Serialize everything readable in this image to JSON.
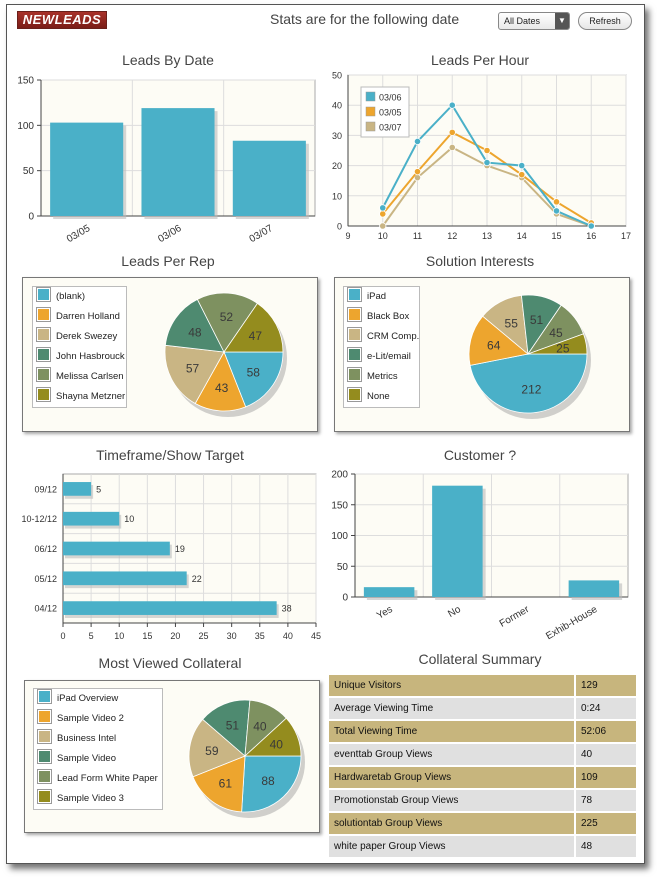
{
  "header": {
    "logo_text": "NEWLEADS",
    "date_label": "Stats are for the following date",
    "date_select_value": "All Dates",
    "refresh_label": "Refresh"
  },
  "colors": {
    "teal": "#4ab0c8",
    "orange": "#eda52e",
    "tan": "#c9b584",
    "darkgreen": "#4e8a70",
    "olive": "#7e9160",
    "mustard": "#948c1e"
  },
  "chart_data": [
    {
      "id": "leads_by_date",
      "type": "bar",
      "title": "Leads By Date",
      "categories": [
        "03/05",
        "03/06",
        "03/07"
      ],
      "values": [
        103,
        119,
        83
      ],
      "ylim": [
        0,
        150
      ],
      "yticks": [
        0,
        50,
        100,
        150
      ]
    },
    {
      "id": "leads_per_hour",
      "type": "line",
      "title": "Leads Per Hour",
      "x": [
        10,
        11,
        12,
        13,
        14,
        15,
        16
      ],
      "xlim": [
        9,
        17
      ],
      "xticks": [
        9,
        10,
        11,
        12,
        13,
        14,
        15,
        16,
        17
      ],
      "ylim": [
        0,
        50
      ],
      "yticks": [
        0,
        10,
        20,
        30,
        40,
        50
      ],
      "series": [
        {
          "name": "03/06",
          "color": "#4ab0c8",
          "values": [
            6,
            28,
            40,
            21,
            20,
            5,
            0
          ]
        },
        {
          "name": "03/05",
          "color": "#eda52e",
          "values": [
            4,
            18,
            31,
            25,
            17,
            8,
            1
          ]
        },
        {
          "name": "03/07",
          "color": "#c9b584",
          "values": [
            0,
            16,
            26,
            20,
            16,
            4,
            0
          ]
        }
      ]
    },
    {
      "id": "leads_per_rep",
      "type": "pie",
      "title": "Leads Per Rep",
      "labels": [
        "(blank)",
        "Darren Holland",
        "Derek Swezey",
        "John Hasbrouck",
        "Melissa Carlsen",
        "Shayna Metzner"
      ],
      "values": [
        58,
        43,
        57,
        48,
        52,
        47
      ],
      "colors": [
        "#4ab0c8",
        "#eda52e",
        "#c9b584",
        "#4e8a70",
        "#7e9160",
        "#948c1e"
      ]
    },
    {
      "id": "solution_interests",
      "type": "pie",
      "title": "Solution Interests",
      "labels": [
        "iPad",
        "Black Box",
        "CRM Comp.",
        "e-Lit/email",
        "Metrics",
        "None"
      ],
      "values": [
        212,
        64,
        55,
        51,
        45,
        25
      ],
      "colors": [
        "#4ab0c8",
        "#eda52e",
        "#c9b584",
        "#4e8a70",
        "#7e9160",
        "#948c1e"
      ]
    },
    {
      "id": "timeframe_show_target",
      "type": "bar",
      "orientation": "horizontal",
      "title": "Timeframe/Show Target",
      "categories": [
        "09/12",
        "10-12/12",
        "06/12",
        "05/12",
        "04/12"
      ],
      "values": [
        5,
        10,
        19,
        22,
        38
      ],
      "xlim": [
        0,
        45
      ],
      "xticks": [
        0,
        5,
        10,
        15,
        20,
        25,
        30,
        35,
        40,
        45
      ]
    },
    {
      "id": "customer",
      "type": "bar",
      "title": "Customer ?",
      "categories": [
        "Yes",
        "No",
        "Former",
        "Exhib-House"
      ],
      "values": [
        16,
        181,
        0,
        27
      ],
      "ylim": [
        0,
        200
      ],
      "yticks": [
        0,
        50,
        100,
        150,
        200
      ]
    },
    {
      "id": "most_viewed_collateral",
      "type": "pie",
      "title": "Most Viewed Collateral",
      "labels": [
        "iPad Overview",
        "Sample Video 2",
        "Business Intel",
        "Sample Video",
        "Lead Form White Paper",
        "Sample Video 3"
      ],
      "values": [
        88,
        61,
        59,
        51,
        40,
        40
      ],
      "colors": [
        "#4ab0c8",
        "#eda52e",
        "#c9b584",
        "#4e8a70",
        "#7e9160",
        "#948c1e"
      ]
    }
  ],
  "collateral_summary": {
    "title": "Collateral Summary",
    "rows": [
      {
        "label": "Unique Visitors",
        "value": "129"
      },
      {
        "label": "Average Viewing Time",
        "value": "0:24"
      },
      {
        "label": "Total Viewing Time",
        "value": "52:06"
      },
      {
        "label": "eventtab Group Views",
        "value": "40"
      },
      {
        "label": "Hardwaretab Group Views",
        "value": "109"
      },
      {
        "label": "Promotionstab Group Views",
        "value": "78"
      },
      {
        "label": "solutiontab Group Views",
        "value": "225"
      },
      {
        "label": "white paper Group Views",
        "value": "48"
      }
    ]
  }
}
